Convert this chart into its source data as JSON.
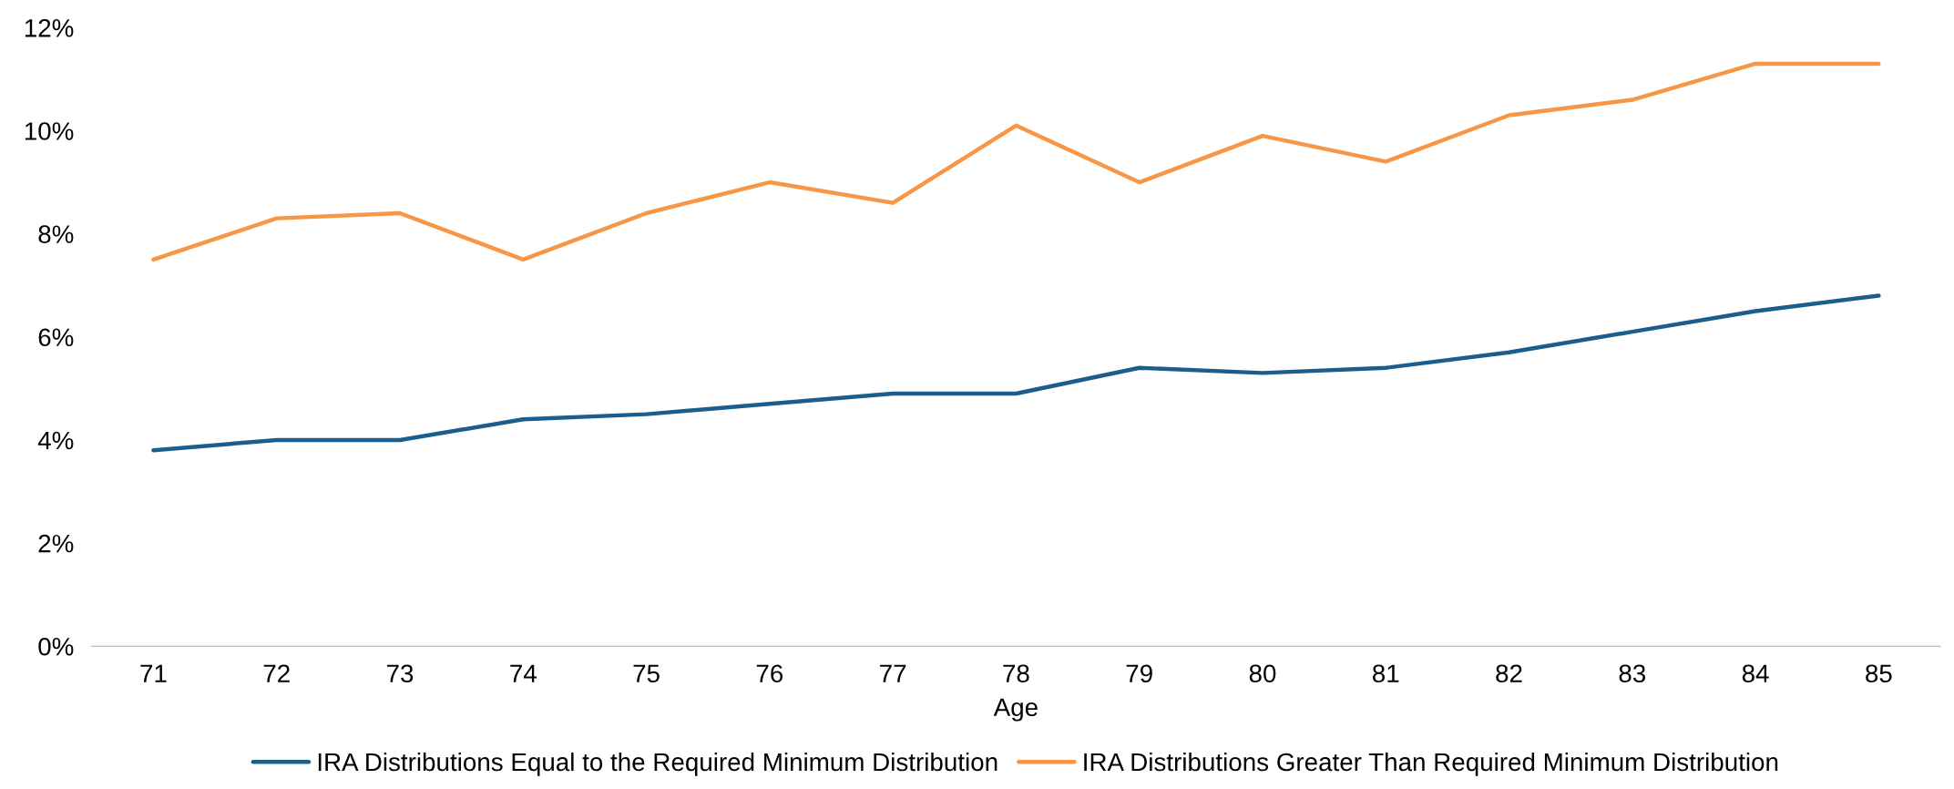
{
  "chart_data": {
    "type": "line",
    "xlabel": "Age",
    "categories": [
      "71",
      "72",
      "73",
      "74",
      "75",
      "76",
      "77",
      "78",
      "79",
      "80",
      "81",
      "82",
      "83",
      "84",
      "85"
    ],
    "series": [
      {
        "name": "IRA Distributions Equal to the Required Minimum Distribution",
        "color": "#1b5e8c",
        "values": [
          3.8,
          4.0,
          4.0,
          4.4,
          4.5,
          4.7,
          4.9,
          4.9,
          5.4,
          5.3,
          5.4,
          5.7,
          6.1,
          6.5,
          6.8
        ]
      },
      {
        "name": "IRA Distributions Greater Than Required Minimum Distribution",
        "color": "#f79646",
        "values": [
          7.5,
          8.3,
          8.4,
          7.5,
          8.4,
          9.0,
          8.6,
          10.1,
          9.0,
          9.9,
          9.4,
          10.3,
          10.6,
          11.3,
          11.3
        ]
      }
    ],
    "ylim": [
      0,
      12
    ],
    "yticks": [
      {
        "value": 0,
        "label": "0%"
      },
      {
        "value": 2,
        "label": "2%"
      },
      {
        "value": 4,
        "label": "4%"
      },
      {
        "value": 6,
        "label": "6%"
      },
      {
        "value": 8,
        "label": "8%"
      },
      {
        "value": 10,
        "label": "10%"
      },
      {
        "value": 12,
        "label": "12%"
      }
    ],
    "grid": false,
    "legend": "bottom",
    "marker": "none",
    "line_style": "solid"
  }
}
